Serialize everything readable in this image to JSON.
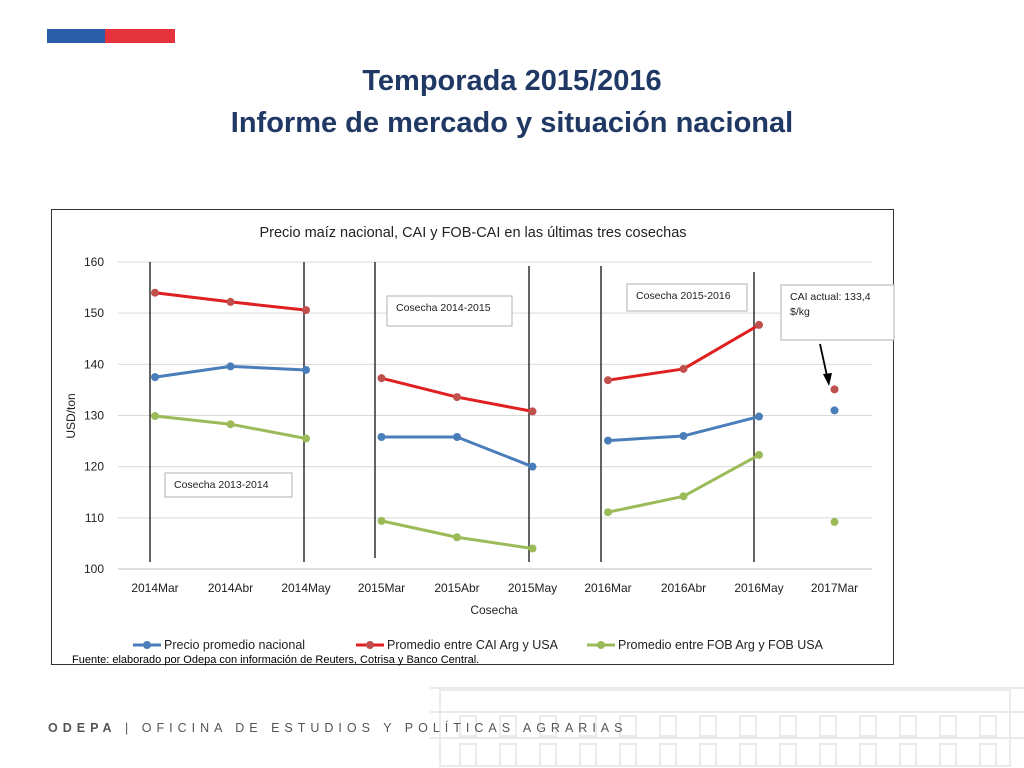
{
  "slide": {
    "title_line1": "Temporada 2015/2016",
    "title_line2": "Informe de mercado y situación nacional",
    "source": "Fuente: elaborado por Odepa con información de Reuters, Cotrisa y Banco Central.",
    "footer_org": "ODEPA",
    "footer_sep": "|",
    "footer_text": "OFICINA DE ESTUDIOS Y POLÍTICAS AGRARIAS",
    "colors": {
      "flag_blue": "#2a5ca8",
      "flag_red": "#e5333d",
      "title": "#1f3864"
    }
  },
  "chart_data": {
    "type": "line",
    "title": "Precio maíz nacional, CAI y FOB-CAI en las últimas tres cosechas",
    "xlabel": "Cosecha",
    "ylabel": "USD/ton",
    "ylim": [
      100,
      160
    ],
    "yticks": [
      "100",
      "110",
      "120",
      "130",
      "140",
      "150",
      "160"
    ],
    "categories": [
      "2014Mar",
      "2014Abr",
      "2014May",
      "2015Mar",
      "2015Abr",
      "2015May",
      "2016Mar",
      "2016Abr",
      "2016May",
      "2017Mar"
    ],
    "groups": [
      [
        0,
        1,
        2
      ],
      [
        3,
        4,
        5
      ],
      [
        6,
        7,
        8
      ],
      [
        9
      ]
    ],
    "grid": true,
    "legend_position": "bottom",
    "series": [
      {
        "name": "Precio promedio nacional",
        "color": "#4a7ebb",
        "values": [
          137.5,
          139.6,
          138.9,
          125.8,
          125.8,
          120.0,
          125.1,
          126.0,
          129.8,
          131.0
        ]
      },
      {
        "name": "Promedio entre CAI Arg y USA",
        "color": "#e02020",
        "marker_color": "#c0504d",
        "values": [
          154.0,
          152.2,
          150.6,
          137.3,
          133.6,
          130.8,
          136.9,
          139.1,
          147.7,
          135.1
        ]
      },
      {
        "name": "Promedio entre FOB Arg y FOB USA",
        "color": "#9bbb59",
        "values": [
          129.9,
          128.3,
          125.5,
          109.4,
          106.2,
          104.0,
          111.1,
          114.2,
          122.3,
          109.2
        ]
      }
    ],
    "annotations": {
      "cosecha_2013": "Cosecha 2013-2014",
      "cosecha_2014": "Cosecha 2014-2015",
      "cosecha_2015": "Cosecha 2015-2016",
      "cai_line1": "CAI actual: 133,4",
      "cai_line2": "$/kg"
    }
  }
}
